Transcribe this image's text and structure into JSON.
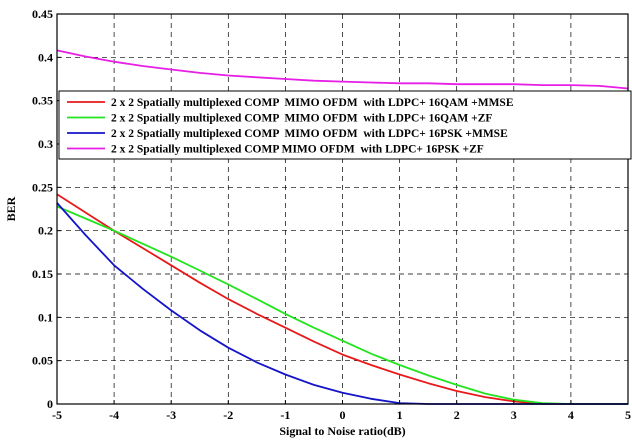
{
  "chart_data": {
    "type": "line",
    "title": "",
    "xlabel": "Signal to Noise ratio(dB)",
    "ylabel": "BER",
    "xlim": [
      -5,
      5
    ],
    "ylim": [
      0,
      0.45
    ],
    "grid": true,
    "grid_style": "dashed",
    "legend_position": "upper-left inside, below top curve",
    "x_ticks": [
      "-5",
      "-4",
      "-3",
      "-2",
      "-1",
      "0",
      "1",
      "2",
      "3",
      "4",
      "5"
    ],
    "y_ticks": [
      "0",
      "0.05",
      "0.1",
      "0.15",
      "0.2",
      "0.25",
      "0.3",
      "0.35",
      "0.4",
      "0.45"
    ],
    "x": [
      -5,
      -4.5,
      -4,
      -3.5,
      -3,
      -2.5,
      -2,
      -1.5,
      -1,
      -0.5,
      0,
      0.5,
      1,
      1.5,
      2,
      2.5,
      3,
      3.5,
      4,
      4.5,
      5
    ],
    "series": [
      {
        "name": "2 x 2 Spatially multiplexed COMP  MIMO OFDM  with LDPC+ 16QAM +MMSE",
        "color": "#e8191b",
        "values": [
          0.242,
          0.221,
          0.2,
          0.18,
          0.16,
          0.14,
          0.121,
          0.104,
          0.088,
          0.072,
          0.057,
          0.045,
          0.034,
          0.024,
          0.015,
          0.008,
          0.003,
          0.0,
          0.0,
          0.0,
          0.0
        ]
      },
      {
        "name": "2 x 2 Spatially multiplexed COMP  MIMO OFDM  with LDPC+ 16QAM +ZF",
        "color": "#22e41e",
        "values": [
          0.228,
          0.214,
          0.2,
          0.185,
          0.17,
          0.154,
          0.138,
          0.121,
          0.104,
          0.088,
          0.073,
          0.058,
          0.045,
          0.033,
          0.022,
          0.012,
          0.005,
          0.001,
          0.0,
          0.0,
          0.0
        ]
      },
      {
        "name": "2 x 2 Spatially multiplexed COMP  MIMO OFDM  with LDPC+ 16PSK +MMSE",
        "color": "#1414c8",
        "values": [
          0.232,
          0.195,
          0.16,
          0.133,
          0.108,
          0.085,
          0.065,
          0.048,
          0.034,
          0.022,
          0.013,
          0.006,
          0.001,
          0.0,
          0.0,
          0.0,
          0.0,
          0.0,
          0.0,
          0.0,
          0.0
        ]
      },
      {
        "name": "2 x 2 Spatially multiplexed COMP MIMO OFDM  with LDPC+ 16PSK +ZF",
        "color": "#e61ee6",
        "values": [
          0.408,
          0.401,
          0.395,
          0.39,
          0.386,
          0.382,
          0.379,
          0.377,
          0.375,
          0.373,
          0.372,
          0.371,
          0.37,
          0.37,
          0.369,
          0.369,
          0.369,
          0.368,
          0.368,
          0.367,
          0.364
        ]
      }
    ]
  }
}
